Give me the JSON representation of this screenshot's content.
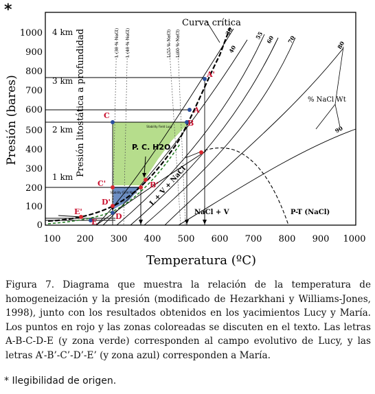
{
  "page_marker": "*",
  "figure": {
    "ylabel": "Presión (bares)",
    "xlabel": "Temperatura (ºC)",
    "depth_label": "Presión litostática a profundidad",
    "y_ticks": [
      "0",
      "100",
      "200",
      "300",
      "400",
      "500",
      "600",
      "700",
      "800",
      "900",
      "1000"
    ],
    "x_ticks": [
      "100",
      "200",
      "300",
      "400",
      "500",
      "600",
      "700",
      "800",
      "900",
      "1000"
    ],
    "depth_ticks": [
      "4 km",
      "3 km",
      "2 km",
      "1 km"
    ],
    "labels": {
      "curva_critica": "Curva crítica",
      "nacl_wt": "% NaCl Wt",
      "pc_h2o": "P. C. H2O",
      "lvnacl": "L + V + NaCl",
      "naclv": "NaCl + V",
      "pt_nacl": "P-T (NaCl)",
      "stability_field": "Stability Field Lucy",
      "stability_field2": "Stability Field Maria",
      "iso30": "30",
      "iso40": "40",
      "iso55": "55",
      "iso60": "60",
      "iso70": "70",
      "iso80": "80",
      "iso90": "90",
      "L30": "L (30 % NaCl)",
      "L40": "L (40 % NaCl)",
      "L55": "L(55 % NaCl)",
      "L60": "L(60 % NaCl)"
    },
    "points": {
      "A": "A",
      "B": "B",
      "C": "C",
      "D": "D",
      "E": "E",
      "Ap": "A'",
      "Bp": "B'",
      "Cp": "C'",
      "Dp": "D'",
      "Ep": "E'"
    },
    "colors": {
      "green_zone": "#b6dd8c",
      "blue_zone": "#6d8fc4",
      "red_point": "#d9282f",
      "blue_point": "#2a4f9c",
      "label_red": "#c8102e"
    }
  },
  "caption": "Figura 7. Diagrama que muestra la relación de la temperatura de homogeneización y la presión (modificado de Hezarkhani y Williams-Jones, 1998), junto con los resultados obtenidos en los yacimientos Lucy y María. Los puntos en rojo y las zonas coloreadas se discuten en el texto. Las letras A-B-C-D-E (y zona verde) corresponden al campo evolutivo de Lucy, y las letras A’-B’-C’-D’-E’ (y zona azul) corresponden a María.",
  "note": "* Ilegibilidad de origen."
}
